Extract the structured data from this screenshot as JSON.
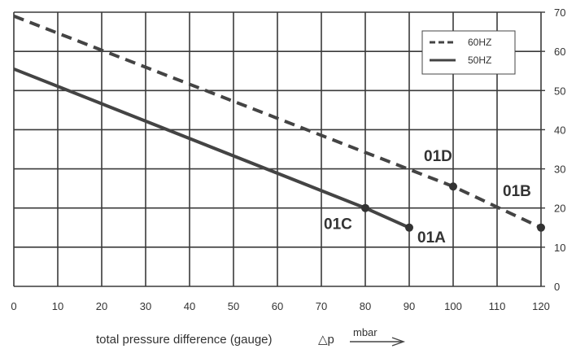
{
  "chart_data": {
    "type": "line",
    "xlabel": "total pressure difference (gauge)",
    "delta_symbol": "△p",
    "xunit": "mbar",
    "xlim": [
      0,
      120
    ],
    "ylim": [
      0,
      70
    ],
    "x_ticks": [
      0,
      10,
      20,
      30,
      40,
      50,
      60,
      70,
      80,
      90,
      100,
      110,
      120
    ],
    "y_ticks": [
      0,
      10,
      20,
      30,
      40,
      50,
      60,
      70
    ],
    "grid": true,
    "y_axis_side": "right",
    "legend_position": "top-right",
    "series": [
      {
        "name": "60HZ",
        "style": "dashed",
        "color": "#444444",
        "points": [
          [
            0,
            69
          ],
          [
            100,
            25.5
          ],
          [
            120,
            15
          ]
        ]
      },
      {
        "name": "50HZ",
        "style": "solid",
        "color": "#444444",
        "points": [
          [
            0,
            55.5
          ],
          [
            80,
            20
          ],
          [
            90,
            15
          ]
        ]
      }
    ],
    "annotations": [
      {
        "label": "01D",
        "series": "60HZ",
        "x": 100,
        "y": 25.5
      },
      {
        "label": "01B",
        "series": "60HZ",
        "x": 120,
        "y": 15
      },
      {
        "label": "01C",
        "series": "50HZ",
        "x": 80,
        "y": 20
      },
      {
        "label": "01A",
        "series": "50HZ",
        "x": 90,
        "y": 15
      }
    ]
  }
}
